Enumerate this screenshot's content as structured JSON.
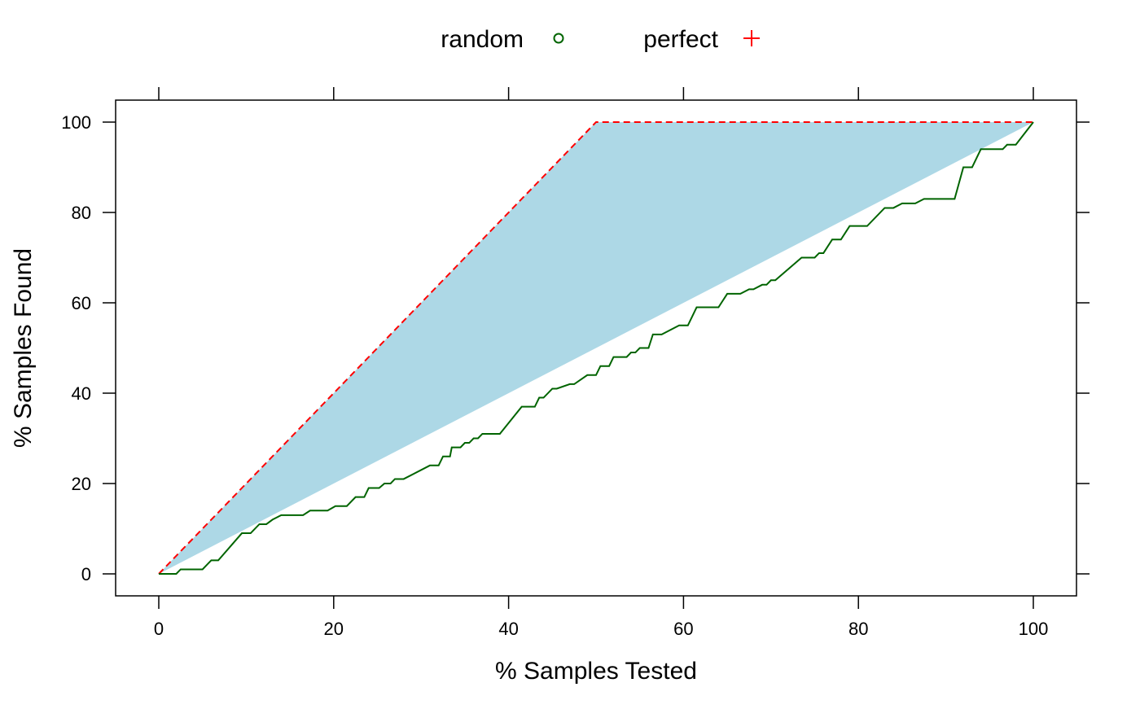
{
  "chart_data": {
    "type": "line",
    "title": "",
    "xlabel": "% Samples Tested",
    "ylabel": "% Samples Found",
    "xlim": [
      -5,
      105
    ],
    "ylim": [
      -5,
      105
    ],
    "grid": false,
    "legend_position": "top",
    "x_ticks": [
      "0",
      "20",
      "40",
      "60",
      "80",
      "100"
    ],
    "y_ticks": [
      "0",
      "20",
      "40",
      "60",
      "80",
      "100"
    ],
    "legend": [
      {
        "label": "random",
        "marker": "circle",
        "color": "#006400"
      },
      {
        "label": "perfect",
        "marker": "plus",
        "color": "#ff0000"
      }
    ],
    "shaded_region": {
      "color": "#add8e6",
      "x": [
        0,
        50,
        100,
        0
      ],
      "y": [
        0,
        100,
        100,
        0
      ]
    },
    "series": [
      {
        "name": "perfect",
        "color": "#ff0000",
        "line_style": "dashed",
        "x": [
          0,
          50,
          100
        ],
        "y": [
          0,
          100,
          100
        ]
      },
      {
        "name": "random",
        "color": "#006400",
        "line_style": "solid",
        "x": [
          0,
          2,
          2.5,
          5,
          6,
          6.8,
          9.5,
          10.5,
          11.5,
          12.3,
          13,
          14,
          16.5,
          17.3,
          19.3,
          20.2,
          21.5,
          22.5,
          23.5,
          24,
          25.2,
          25.8,
          26.5,
          27,
          28,
          31,
          32,
          32.5,
          33.3,
          33.5,
          34.5,
          35,
          35.5,
          36,
          36.5,
          37,
          39,
          41.5,
          43,
          43.5,
          44,
          45,
          45.5,
          47,
          47.5,
          49,
          50,
          50.5,
          51.5,
          52,
          53.5,
          54,
          54.5,
          55,
          56,
          56.5,
          57.5,
          59.5,
          60.5,
          61.5,
          64,
          65,
          66.5,
          67.5,
          68,
          69,
          69.5,
          70,
          70.5,
          73.5,
          75,
          75.5,
          76,
          77,
          78,
          79,
          81,
          83,
          84,
          85,
          86.5,
          87.5,
          91,
          92,
          93,
          94,
          96.5,
          97,
          98,
          100
        ],
        "y": [
          0,
          0,
          1,
          1,
          3,
          3,
          9,
          9,
          11,
          11,
          12,
          13,
          13,
          14,
          14,
          15,
          15,
          17,
          17,
          19,
          19,
          20,
          20,
          21,
          21,
          24,
          24,
          26,
          26,
          28,
          28,
          29,
          29,
          30,
          30,
          31,
          31,
          37,
          37,
          39,
          39,
          41,
          41,
          42,
          42,
          44,
          44,
          46,
          46,
          48,
          48,
          49,
          49,
          50,
          50,
          53,
          53,
          55,
          55,
          59,
          59,
          62,
          62,
          63,
          63,
          64,
          64,
          65,
          65,
          70,
          70,
          71,
          71,
          74,
          74,
          77,
          77,
          81,
          81,
          82,
          82,
          83,
          83,
          90,
          90,
          94,
          94,
          95,
          95,
          100
        ]
      }
    ]
  }
}
